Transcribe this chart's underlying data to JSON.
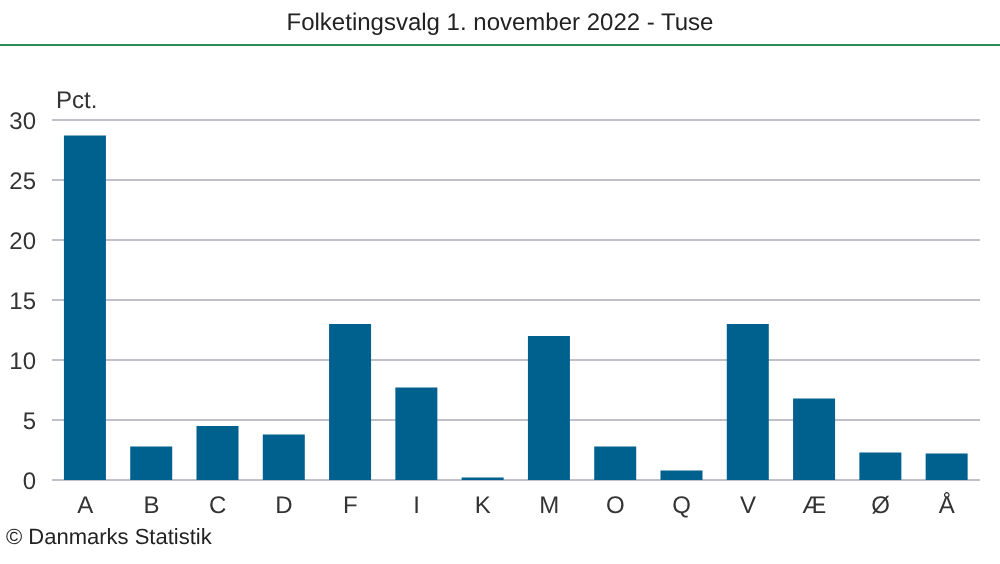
{
  "chart_data": {
    "type": "bar",
    "title": "Folketingsvalg 1. november 2022 - Tuse",
    "ylabel": "Pct.",
    "categories": [
      "A",
      "B",
      "C",
      "D",
      "F",
      "I",
      "K",
      "M",
      "O",
      "Q",
      "V",
      "Æ",
      "Ø",
      "Å"
    ],
    "values": [
      28.7,
      2.8,
      4.5,
      3.8,
      13.0,
      7.7,
      0.2,
      12.0,
      2.8,
      0.8,
      13.0,
      6.8,
      2.3,
      2.2
    ],
    "color": "#00618f",
    "ylim": [
      0,
      30
    ],
    "yticks": [
      0,
      5,
      10,
      15,
      20,
      25,
      30
    ],
    "grid": "y",
    "annotations": [
      "© Danmarks Statistik"
    ]
  }
}
